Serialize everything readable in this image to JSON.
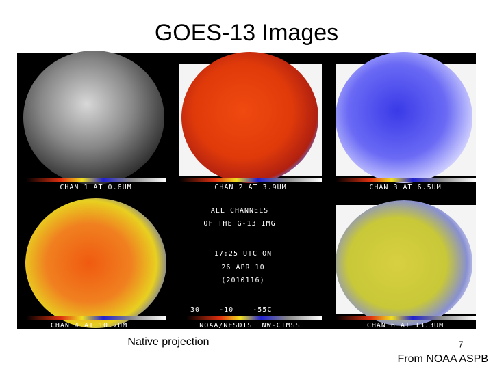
{
  "slide": {
    "title": "GOES-13 Images",
    "panels": [
      {
        "label": "CHAN 1 AT 0.6UM"
      },
      {
        "label": "CHAN 2 AT 3.9UM"
      },
      {
        "label": "CHAN 3 AT 6.5UM"
      },
      {
        "label": "CHAN 4 AT 10.7UM"
      },
      {
        "label": "CHAN 6 AT 13.3UM"
      }
    ],
    "center_text": [
      "ALL CHANNELS",
      "OF THE G-13 IMG",
      "17:25 UTC ON",
      "26 APR 10",
      "(2010116)"
    ],
    "scale_text": "30    -10    -55C",
    "credit_text": "NOAA/NESDIS  NW-CIMSS",
    "caption": "Native projection",
    "page_number": "7",
    "source": "From NOAA ASPB"
  }
}
